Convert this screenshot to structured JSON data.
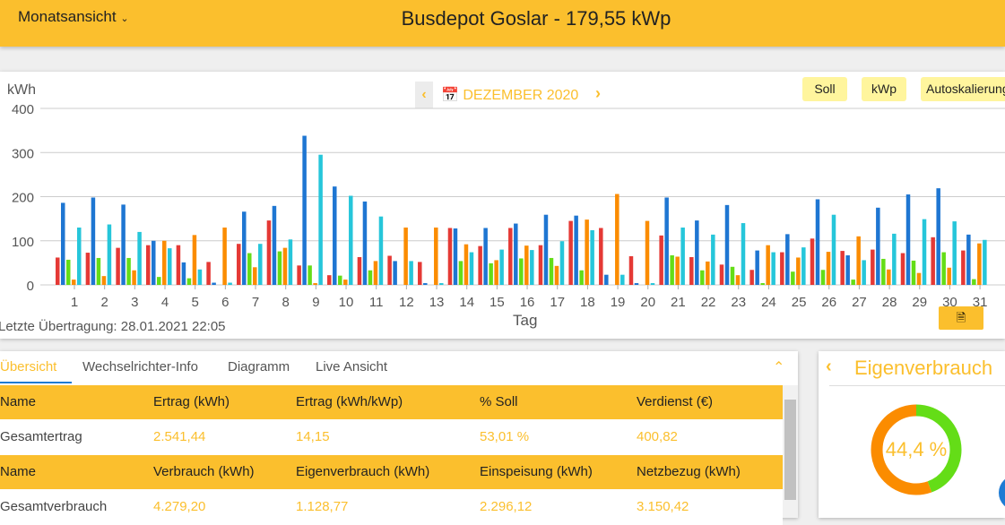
{
  "header": {
    "view_selector": "Monatsansicht",
    "title": "Busdepot Goslar - 179,55 kWp"
  },
  "chart_nav": {
    "month": "DEZEMBER 2020",
    "prev_icon": "chevron-left-icon",
    "next_icon": "chevron-right-icon",
    "calendar_icon": "calendar-icon"
  },
  "toggles": {
    "soll": "Soll",
    "kwp": "kWp",
    "autoscale": "Autoskalierung"
  },
  "status": {
    "last_transfer": "Letzte Übertragung: 28.01.2021 22:05"
  },
  "export_icon": "file-code-icon",
  "chart_data": {
    "type": "bar",
    "ylabel": "kWh",
    "xlabel": "Tag",
    "ylim": [
      0,
      400
    ],
    "yticks": [
      0,
      100,
      200,
      300,
      400
    ],
    "grid": true,
    "categories": [
      "1",
      "2",
      "3",
      "4",
      "5",
      "6",
      "7",
      "8",
      "9",
      "10",
      "11",
      "12",
      "13",
      "14",
      "15",
      "16",
      "17",
      "18",
      "19",
      "20",
      "21",
      "22",
      "23",
      "24",
      "25",
      "26",
      "27",
      "28",
      "29",
      "30",
      "31"
    ],
    "series": [
      {
        "color": "#e53935",
        "values": [
          62,
          73,
          84,
          90,
          90,
          52,
          93,
          146,
          44,
          22,
          63,
          66,
          52,
          129,
          88,
          129,
          90,
          145,
          129,
          65,
          112,
          63,
          46,
          34,
          74,
          105,
          77,
          80,
          72,
          108,
          78
        ]
      },
      {
        "color": "#1e76d2",
        "values": [
          186,
          198,
          182,
          100,
          51,
          5,
          166,
          179,
          338,
          223,
          189,
          54,
          4,
          128,
          129,
          139,
          159,
          157,
          23,
          4,
          198,
          146,
          181,
          78,
          115,
          194,
          67,
          175,
          205,
          219,
          114
        ]
      },
      {
        "color": "#64dd17",
        "values": [
          57,
          61,
          61,
          18,
          15,
          0,
          72,
          76,
          44,
          21,
          33,
          0,
          0,
          54,
          49,
          60,
          61,
          33,
          0,
          0,
          67,
          33,
          41,
          4,
          30,
          34,
          12,
          59,
          55,
          74,
          13
        ]
      },
      {
        "color": "#fb8c00",
        "values": [
          12,
          20,
          33,
          100,
          113,
          130,
          40,
          84,
          4,
          12,
          54,
          130,
          130,
          92,
          56,
          89,
          43,
          148,
          206,
          145,
          64,
          53,
          22,
          90,
          62,
          75,
          110,
          35,
          27,
          39,
          94
        ]
      },
      {
        "color": "#26c6da",
        "values": [
          130,
          137,
          120,
          83,
          35,
          5,
          93,
          103,
          295,
          202,
          155,
          54,
          4,
          74,
          80,
          79,
          99,
          124,
          23,
          4,
          130,
          114,
          140,
          74,
          85,
          159,
          56,
          116,
          149,
          144,
          102
        ]
      }
    ]
  },
  "tabs": [
    {
      "label": "Übersicht",
      "active": true
    },
    {
      "label": "Wechselrichter-Info"
    },
    {
      "label": "Diagramm"
    },
    {
      "label": "Live Ansicht"
    }
  ],
  "table": {
    "header1": [
      "Name",
      "Ertrag (kWh)",
      "Ertrag (kWh/kWp)",
      "% Soll",
      "Verdienst (€)"
    ],
    "row1": [
      "Gesamtertrag",
      "2.541,44",
      "14,15",
      "53,01 %",
      "400,82"
    ],
    "header2": [
      "Name",
      "Verbrauch (kWh)",
      "Eigenverbrauch (kWh)",
      "Einspeisung (kWh)",
      "Netzbezug (kWh)"
    ],
    "row2": [
      "Gesamtverbrauch",
      "4.279,20",
      "1.128,77",
      "2.296,12",
      "3.150,42"
    ]
  },
  "eigenverbrauch": {
    "title": "Eigenverbrauch",
    "value_label": "44,4 %",
    "fraction": 0.444,
    "colors": {
      "own": "#64dd17",
      "rest": "#fb8c00"
    }
  }
}
